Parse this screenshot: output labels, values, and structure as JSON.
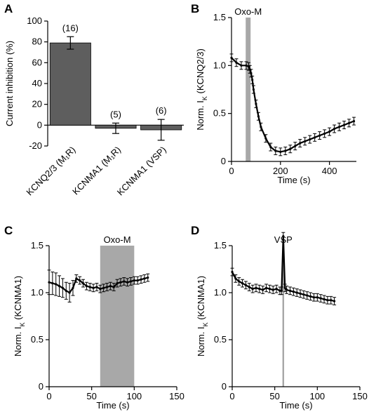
{
  "colors": {
    "bar_fill": "#5e5e5e",
    "shade": "#a8a8a8",
    "trace": "#000000"
  },
  "chart_data": [
    {
      "panel": "A",
      "type": "bar",
      "categories": [
        "KCNQ2/3 (M₁R)",
        "KCNMA1 (M₁R)",
        "KCNMA1 (VSP)"
      ],
      "values": [
        79,
        -3,
        -4.5
      ],
      "errors": [
        6,
        5,
        10
      ],
      "n_labels": [
        "(16)",
        "(5)",
        "(6)"
      ],
      "ylabel": "Current inhibition (%)",
      "ylim": [
        -20,
        100
      ],
      "yticks": [
        "100",
        "80",
        "60",
        "40",
        "20",
        "0",
        "-20"
      ]
    },
    {
      "panel": "B",
      "type": "line",
      "ylabel_main": "Norm. I",
      "ylabel_sub": "K",
      "ylabel_tail": " (KCNQ2/3)",
      "xlabel": "Time (s)",
      "xlim": [
        0,
        510
      ],
      "ylim": [
        0,
        1.5
      ],
      "xticks": [
        "0",
        "200",
        "400"
      ],
      "yticks": [
        "0",
        "0.5",
        "1.0",
        "1.5"
      ],
      "annotation": "Oxo-M",
      "shade_range": [
        58,
        78
      ],
      "series": [
        {
          "x": [
            0,
            20,
            40,
            60,
            70,
            75,
            80,
            85,
            90,
            100,
            110,
            120,
            140,
            160,
            180,
            200,
            220,
            240,
            260,
            280,
            300,
            320,
            340,
            360,
            380,
            400,
            420,
            440,
            460,
            480,
            500
          ],
          "y": [
            1.08,
            1.03,
            1.0,
            1.0,
            0.99,
            0.96,
            0.92,
            0.85,
            0.75,
            0.6,
            0.47,
            0.36,
            0.24,
            0.15,
            0.11,
            0.1,
            0.11,
            0.13,
            0.16,
            0.19,
            0.21,
            0.23,
            0.25,
            0.27,
            0.29,
            0.31,
            0.34,
            0.36,
            0.38,
            0.4,
            0.42
          ],
          "err": 0.04
        }
      ]
    },
    {
      "panel": "C",
      "type": "line",
      "ylabel_main": "Norm. I",
      "ylabel_sub": "K",
      "ylabel_tail": " (KCNMA1)",
      "xlabel": "Time (s)",
      "xlim": [
        0,
        150
      ],
      "ylim": [
        0,
        1.5
      ],
      "xticks": [
        "0",
        "50",
        "100",
        "150"
      ],
      "yticks": [
        "0",
        "0.5",
        "1.0",
        "1.5"
      ],
      "annotation": "Oxo-M",
      "shade_range": [
        60,
        100
      ],
      "series": [
        {
          "x": [
            0,
            4,
            8,
            12,
            16,
            20,
            24,
            28,
            32,
            36,
            40,
            44,
            48,
            52,
            56,
            60,
            64,
            68,
            72,
            76,
            80,
            84,
            88,
            92,
            96,
            100,
            104,
            108,
            112,
            116
          ],
          "y": [
            1.11,
            1.1,
            1.09,
            1.07,
            1.05,
            1.02,
            1.0,
            1.05,
            1.15,
            1.13,
            1.1,
            1.07,
            1.06,
            1.05,
            1.06,
            1.04,
            1.05,
            1.06,
            1.07,
            1.06,
            1.1,
            1.11,
            1.12,
            1.11,
            1.12,
            1.13,
            1.13,
            1.14,
            1.15,
            1.16
          ],
          "err": [
            0.13,
            0.12,
            0.12,
            0.11,
            0.1,
            0.09,
            0.1,
            0.08,
            0.04,
            0.04,
            0.04,
            0.04,
            0.04,
            0.04,
            0.04,
            0.04,
            0.04,
            0.04,
            0.04,
            0.04,
            0.04,
            0.04,
            0.04,
            0.04,
            0.04,
            0.04,
            0.04,
            0.04,
            0.04,
            0.04
          ]
        }
      ]
    },
    {
      "panel": "D",
      "type": "line",
      "ylabel_main": "Norm. I",
      "ylabel_sub": "K",
      "ylabel_tail": " (KCNMA1)",
      "xlabel": "Time (s)",
      "xlim": [
        0,
        150
      ],
      "ylim": [
        0,
        1.5
      ],
      "xticks": [
        "0",
        "50",
        "100",
        "150"
      ],
      "yticks": [
        "0",
        "0.5",
        "1.0",
        "1.5"
      ],
      "annotation": "VSP",
      "shade_range": [
        59,
        61
      ],
      "series": [
        {
          "x": [
            0,
            4,
            8,
            12,
            16,
            20,
            24,
            28,
            32,
            36,
            40,
            44,
            48,
            52,
            56,
            58,
            60,
            62,
            64,
            68,
            72,
            76,
            80,
            84,
            88,
            92,
            96,
            100,
            104,
            108,
            112,
            116,
            120
          ],
          "y": [
            1.22,
            1.15,
            1.12,
            1.1,
            1.08,
            1.06,
            1.04,
            1.05,
            1.04,
            1.03,
            1.05,
            1.04,
            1.03,
            1.04,
            1.02,
            1.02,
            1.6,
            1.05,
            1.03,
            1.02,
            1.01,
            1.0,
            0.99,
            0.98,
            0.97,
            0.96,
            0.95,
            0.95,
            0.94,
            0.93,
            0.92,
            0.92,
            0.91
          ],
          "err": 0.04
        }
      ]
    }
  ],
  "panels": {
    "A": {
      "letter": "A"
    },
    "B": {
      "letter": "B"
    },
    "C": {
      "letter": "C"
    },
    "D": {
      "letter": "D"
    }
  }
}
